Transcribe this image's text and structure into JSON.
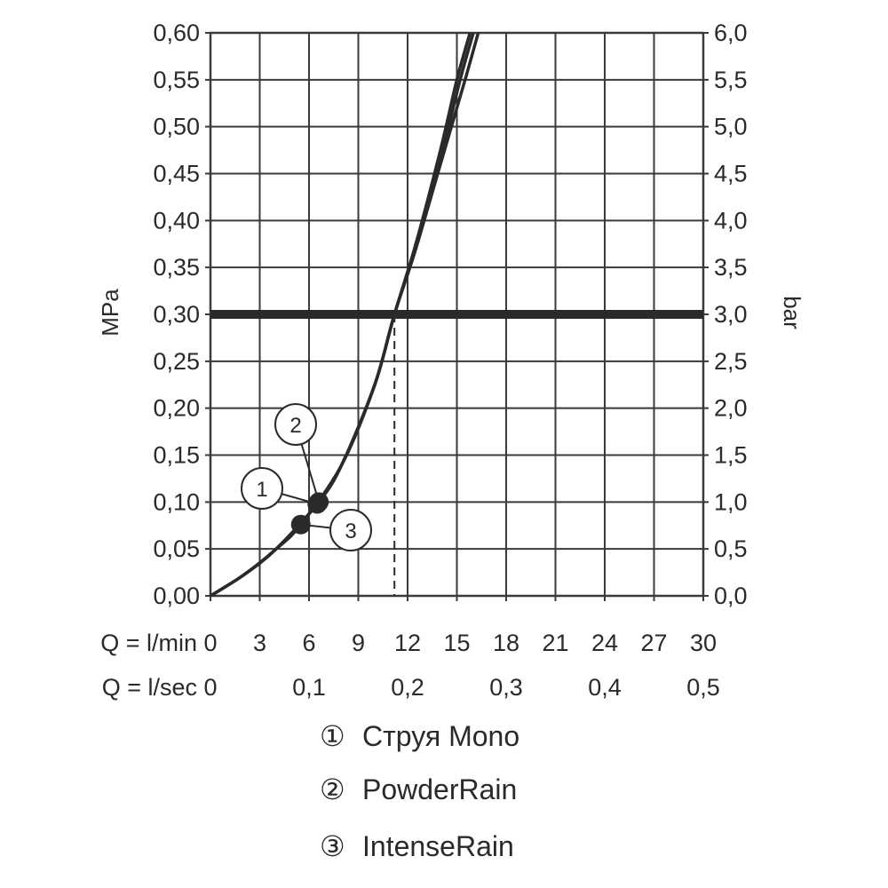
{
  "chart_data": {
    "type": "line",
    "left_axis": {
      "label": "MPa",
      "ylim": [
        0,
        0.6
      ],
      "ticks": [
        "0,00",
        "0,05",
        "0,10",
        "0,15",
        "0,20",
        "0,25",
        "0,30",
        "0,35",
        "0,40",
        "0,45",
        "0,50",
        "0,55",
        "0,60"
      ]
    },
    "right_axis": {
      "label": "bar",
      "ylim": [
        0,
        6
      ],
      "ticks": [
        "0,0",
        "0,5",
        "1,0",
        "1,5",
        "2,0",
        "2,5",
        "3,0",
        "3,5",
        "4,0",
        "4,5",
        "5,0",
        "5,5",
        "6,0"
      ]
    },
    "x_axis": {
      "xlim": [
        0,
        30
      ],
      "lmin_label": "Q = l/min",
      "lmin_ticks": [
        "0",
        "3",
        "6",
        "9",
        "12",
        "15",
        "18",
        "21",
        "24",
        "27",
        "30"
      ],
      "lsec_label": "Q = l/sec",
      "lsec_ticks": [
        "0",
        "0,1",
        "0,2",
        "0,3",
        "0,4",
        "0,5"
      ]
    },
    "reference_pressure_mpa": 0.3,
    "reference_flow_lmin": 11.2,
    "grid": true,
    "series": [
      {
        "name": "Струя Mono",
        "marker": "1",
        "x": [
          0,
          2,
          4,
          6.5,
          8,
          10,
          11.2,
          12.5,
          14,
          15,
          15.8
        ],
        "y": [
          0,
          0.022,
          0.05,
          0.098,
          0.14,
          0.225,
          0.3,
          0.375,
          0.475,
          0.55,
          0.6
        ]
      },
      {
        "name": "PowderRain",
        "marker": "2",
        "x": [
          0,
          2,
          4,
          6.6,
          8,
          10,
          11.2,
          12.5,
          14,
          15.5,
          16.3
        ],
        "y": [
          0,
          0.022,
          0.05,
          0.1,
          0.14,
          0.225,
          0.3,
          0.37,
          0.46,
          0.55,
          0.6
        ]
      },
      {
        "name": "IntenseRain",
        "marker": "3",
        "x": [
          0,
          2,
          4,
          5.5,
          8,
          10,
          11.2,
          12.5,
          14,
          15.2,
          16.0
        ],
        "y": [
          0,
          0.022,
          0.05,
          0.076,
          0.14,
          0.225,
          0.3,
          0.37,
          0.465,
          0.55,
          0.6
        ]
      }
    ],
    "operating_points": [
      {
        "series": "Струя Mono",
        "x": 6.5,
        "y": 0.098
      },
      {
        "series": "PowderRain",
        "x": 6.6,
        "y": 0.1
      },
      {
        "series": "IntenseRain",
        "x": 5.5,
        "y": 0.076
      }
    ]
  },
  "legend": [
    {
      "symbol": "①",
      "label": "Струя Mono"
    },
    {
      "symbol": "②",
      "label": "PowderRain"
    },
    {
      "symbol": "③",
      "label": "IntenseRain"
    }
  ],
  "colors": {
    "line": "#2a2a2a",
    "grid": "#3a3a3a",
    "background": "#ffffff"
  }
}
